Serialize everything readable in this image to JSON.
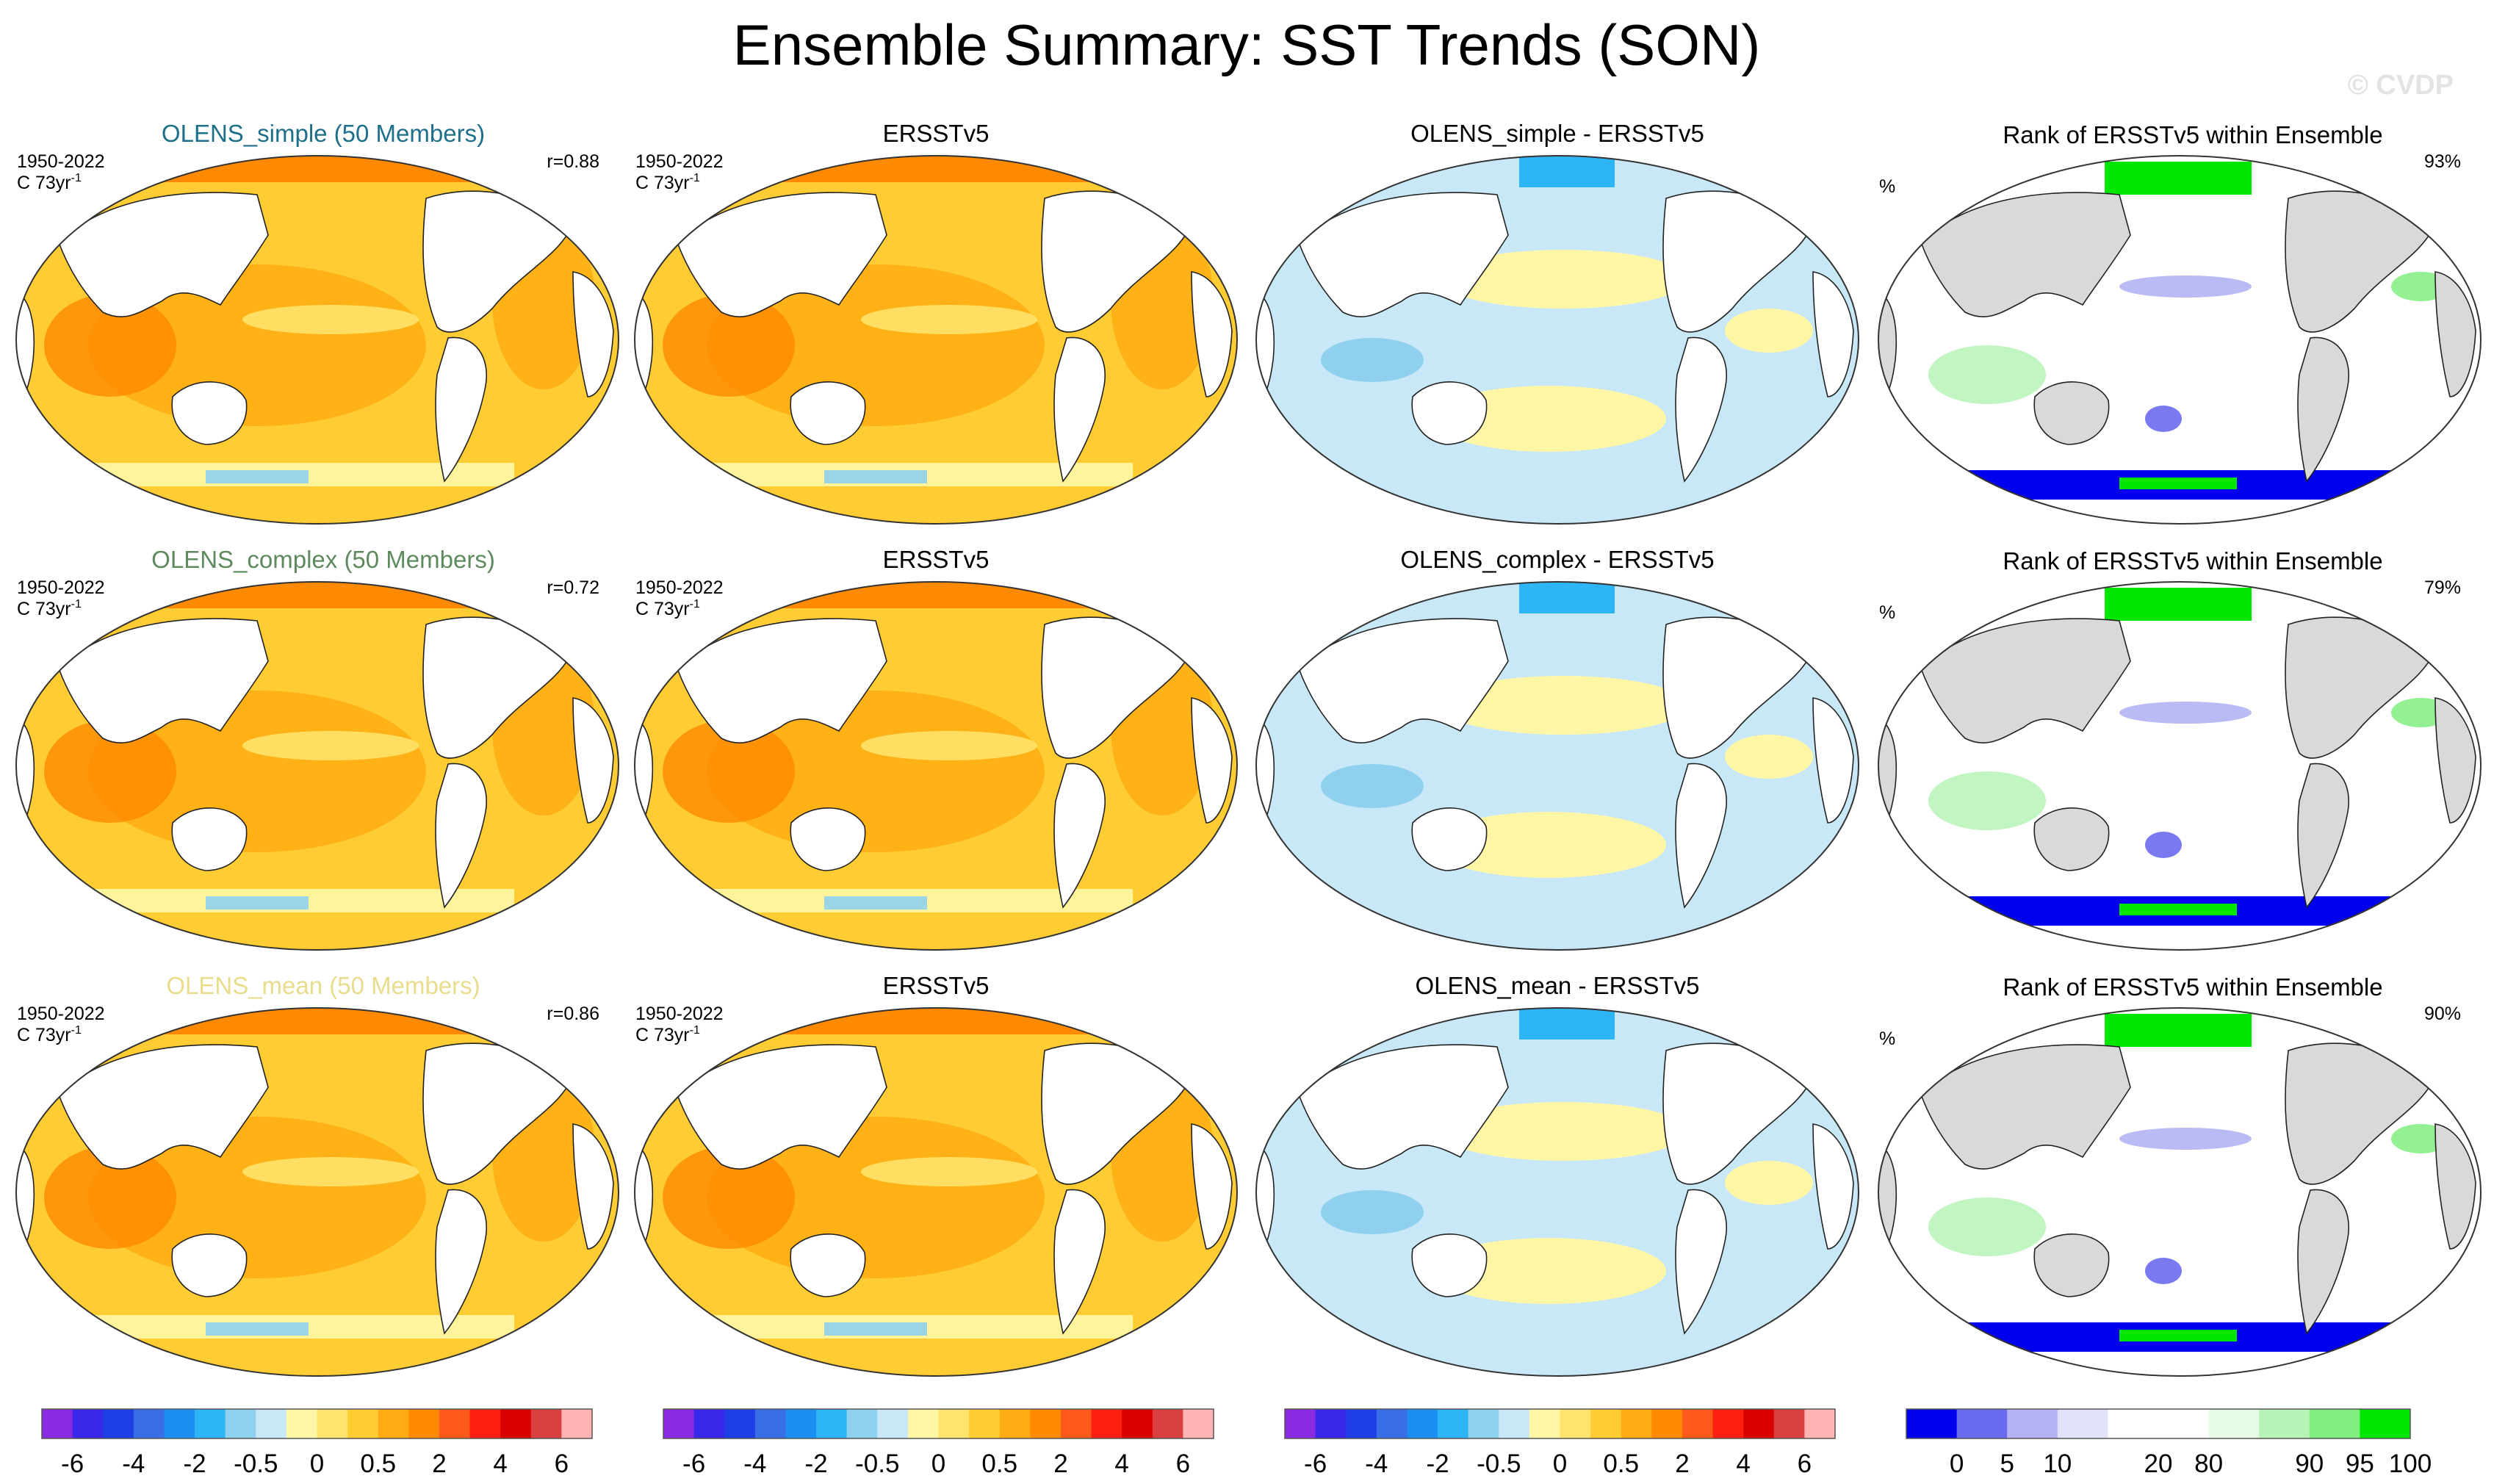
{
  "title": "Ensemble Summary: SST Trends (SON)",
  "watermark": "© CVDP",
  "colors": {
    "ocean_warm": "#ffc125",
    "ocean_cool": "#b7e1f4",
    "land": "#ffffff",
    "land_gray": "#d9d9d9",
    "rank_white": "#ffffff",
    "title_simple": "#1e6f8a",
    "title_complex": "#5e8a5e",
    "title_mean": "#e9dc8c"
  },
  "rows": [
    {
      "ensemble_title": "OLENS_simple (50 Members)",
      "ensemble_title_color": "#1e6f8a",
      "period": "1950-2022",
      "units": "C 73yr",
      "units_sup": "-1",
      "r_label": "r=0.88",
      "obs_title": "ERSSTv5",
      "diff_title": "OLENS_simple - ERSSTv5",
      "rank_title": "Rank of ERSSTv5 within Ensemble",
      "rank_pct_unit": "%",
      "rank_pct": "93%"
    },
    {
      "ensemble_title": "OLENS_complex (50 Members)",
      "ensemble_title_color": "#5e8a5e",
      "period": "1950-2022",
      "units": "C 73yr",
      "units_sup": "-1",
      "r_label": "r=0.72",
      "obs_title": "ERSSTv5",
      "diff_title": "OLENS_complex - ERSSTv5",
      "rank_title": "Rank of ERSSTv5 within Ensemble",
      "rank_pct_unit": "%",
      "rank_pct": "79%"
    },
    {
      "ensemble_title": "OLENS_mean (50 Members)",
      "ensemble_title_color": "#e9dc8c",
      "period": "1950-2022",
      "units": "C 73yr",
      "units_sup": "-1",
      "r_label": "r=0.86",
      "obs_title": "ERSSTv5",
      "diff_title": "OLENS_mean - ERSSTv5",
      "rank_title": "Rank of ERSSTv5 within Ensemble",
      "rank_pct_unit": "%",
      "rank_pct": "90%"
    }
  ],
  "chart_data": {
    "type": "heatmap",
    "projection": "Robinson, Pacific-centered",
    "trend_colorbar": {
      "colors": [
        "#8a2be2",
        "#3a28e8",
        "#1f3fe6",
        "#3a6ee6",
        "#1c8ff2",
        "#2eb5f5",
        "#8fd0ef",
        "#c9e8f7",
        "#fff7a6",
        "#ffe36a",
        "#ffcc33",
        "#ffab12",
        "#ff8a00",
        "#ff5a1a",
        "#ff1f10",
        "#d90000",
        "#d93f3f",
        "#ffb3b3"
      ],
      "tick_labels": [
        "-6",
        "-4",
        "-2",
        "-0.5",
        "0",
        "0.5",
        "2",
        "4",
        "6"
      ]
    },
    "rank_colorbar": {
      "colors": [
        "#0000ee",
        "#6a6aee",
        "#b3b3f3",
        "#e2e2fb",
        "#ffffff",
        "#ffffff",
        "#e6fbe6",
        "#b6f3b6",
        "#80ee80",
        "#00e600"
      ],
      "tick_labels": [
        "0",
        "5",
        "10",
        "20",
        "80",
        "90",
        "95",
        "100"
      ]
    }
  }
}
